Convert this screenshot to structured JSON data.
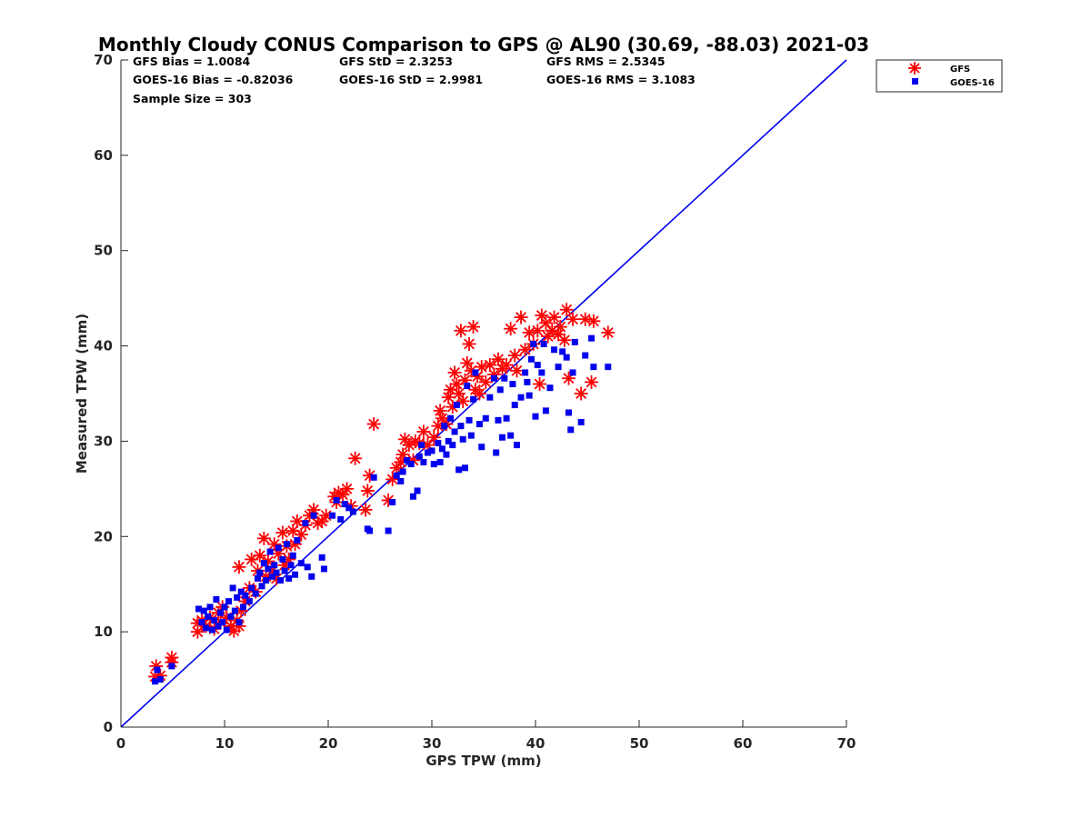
{
  "chart_data": {
    "type": "scatter",
    "title": "Monthly Cloudy CONUS Comparison to GPS @ AL90 (30.69, -88.03) 2021-03",
    "xlabel": "GPS TPW (mm)",
    "ylabel": "Measured TPW (mm)",
    "xlim": [
      0,
      70
    ],
    "ylim": [
      0,
      70
    ],
    "xticks": [
      "0",
      "10",
      "20",
      "30",
      "40",
      "50",
      "60",
      "70"
    ],
    "yticks": [
      "0",
      "10",
      "20",
      "30",
      "40",
      "50",
      "60",
      "70"
    ],
    "grid": false,
    "legend_position": "top-right outside",
    "stats": {
      "gfs_bias": "GFS Bias = 1.0084",
      "gfs_std": "GFS StD = 2.3253",
      "gfs_rms": "GFS RMS = 2.5345",
      "goes_bias": "GOES-16 Bias = -0.82036",
      "goes_std": "GOES-16 StD = 2.9981",
      "goes_rms": "GOES-16 RMS = 3.1083",
      "sample_size": "Sample Size = 303"
    },
    "reference_line": {
      "x": [
        0,
        70
      ],
      "y": [
        0,
        70
      ],
      "color": "#0000ee"
    },
    "series": [
      {
        "name": "GFS",
        "marker": "asterisk",
        "color": "#ff0000",
        "points": [
          [
            3.3,
            5.3
          ],
          [
            3.4,
            6.4
          ],
          [
            3.8,
            5.4
          ],
          [
            4.9,
            6.8
          ],
          [
            4.9,
            7.3
          ],
          [
            7.4,
            10.0
          ],
          [
            7.4,
            10.9
          ],
          [
            7.8,
            11.2
          ],
          [
            8.2,
            10.6
          ],
          [
            8.6,
            11.5
          ],
          [
            9.0,
            10.3
          ],
          [
            9.4,
            12.0
          ],
          [
            9.6,
            11.0
          ],
          [
            9.8,
            12.6
          ],
          [
            10.2,
            11.5
          ],
          [
            10.6,
            10.6
          ],
          [
            10.9,
            10.1
          ],
          [
            11.2,
            11.2
          ],
          [
            11.4,
            10.6
          ],
          [
            11.6,
            12.2
          ],
          [
            11.4,
            16.8
          ],
          [
            12.0,
            13.2
          ],
          [
            12.4,
            14.6
          ],
          [
            12.6,
            17.6
          ],
          [
            13.0,
            14.2
          ],
          [
            13.2,
            16.4
          ],
          [
            13.4,
            18.0
          ],
          [
            13.8,
            19.8
          ],
          [
            14.0,
            15.8
          ],
          [
            14.2,
            17.4
          ],
          [
            14.6,
            16.4
          ],
          [
            14.8,
            19.2
          ],
          [
            15.0,
            15.6
          ],
          [
            15.2,
            18.2
          ],
          [
            15.6,
            20.4
          ],
          [
            15.8,
            17.0
          ],
          [
            16.0,
            19.0
          ],
          [
            16.2,
            17.6
          ],
          [
            16.6,
            20.6
          ],
          [
            16.8,
            19.2
          ],
          [
            17.0,
            21.6
          ],
          [
            17.4,
            20.2
          ],
          [
            17.8,
            21.2
          ],
          [
            18.2,
            22.2
          ],
          [
            18.6,
            22.8
          ],
          [
            19.0,
            21.4
          ],
          [
            19.4,
            21.6
          ],
          [
            19.8,
            22.2
          ],
          [
            20.6,
            24.2
          ],
          [
            20.8,
            23.6
          ],
          [
            21.0,
            24.6
          ],
          [
            21.4,
            24.4
          ],
          [
            21.8,
            25.0
          ],
          [
            22.2,
            23.2
          ],
          [
            22.6,
            28.2
          ],
          [
            23.6,
            22.8
          ],
          [
            23.8,
            24.8
          ],
          [
            24.0,
            26.4
          ],
          [
            24.4,
            31.8
          ],
          [
            25.8,
            23.8
          ],
          [
            26.2,
            26.0
          ],
          [
            26.6,
            27.2
          ],
          [
            27.0,
            27.8
          ],
          [
            27.2,
            28.6
          ],
          [
            27.4,
            30.2
          ],
          [
            27.8,
            29.6
          ],
          [
            28.2,
            28.0
          ],
          [
            28.4,
            30.0
          ],
          [
            28.8,
            29.8
          ],
          [
            29.2,
            31.0
          ],
          [
            29.6,
            29.6
          ],
          [
            30.2,
            30.4
          ],
          [
            30.6,
            31.6
          ],
          [
            30.8,
            33.2
          ],
          [
            31.0,
            32.4
          ],
          [
            31.4,
            31.8
          ],
          [
            31.6,
            34.6
          ],
          [
            31.8,
            35.4
          ],
          [
            32.0,
            33.6
          ],
          [
            32.2,
            37.2
          ],
          [
            32.4,
            36.0
          ],
          [
            32.6,
            35.0
          ],
          [
            32.8,
            41.6
          ],
          [
            33.0,
            34.2
          ],
          [
            33.2,
            36.4
          ],
          [
            33.4,
            38.2
          ],
          [
            33.6,
            40.2
          ],
          [
            33.8,
            37.4
          ],
          [
            34.0,
            42.0
          ],
          [
            34.2,
            35.4
          ],
          [
            34.4,
            36.8
          ],
          [
            34.6,
            35.0
          ],
          [
            34.8,
            37.8
          ],
          [
            35.2,
            36.2
          ],
          [
            35.6,
            38.0
          ],
          [
            36.0,
            37.0
          ],
          [
            36.4,
            38.6
          ],
          [
            36.8,
            37.6
          ],
          [
            37.2,
            38.0
          ],
          [
            37.6,
            41.8
          ],
          [
            38.0,
            39.0
          ],
          [
            38.2,
            37.4
          ],
          [
            38.6,
            43.0
          ],
          [
            39.0,
            39.6
          ],
          [
            39.4,
            41.4
          ],
          [
            39.8,
            40.2
          ],
          [
            40.2,
            41.6
          ],
          [
            40.4,
            36.0
          ],
          [
            40.6,
            43.2
          ],
          [
            41.0,
            42.4
          ],
          [
            41.2,
            41.0
          ],
          [
            41.6,
            41.6
          ],
          [
            41.8,
            43.0
          ],
          [
            42.2,
            41.2
          ],
          [
            42.4,
            42.0
          ],
          [
            42.8,
            40.6
          ],
          [
            43.0,
            43.8
          ],
          [
            43.2,
            36.6
          ],
          [
            43.6,
            42.8
          ],
          [
            44.4,
            35.0
          ],
          [
            44.8,
            42.8
          ],
          [
            45.4,
            36.2
          ],
          [
            45.6,
            42.6
          ],
          [
            47.0,
            41.4
          ]
        ]
      },
      {
        "name": "GOES-16",
        "marker": "square",
        "color": "#0000ee",
        "points": [
          [
            3.3,
            4.8
          ],
          [
            3.5,
            6.0
          ],
          [
            3.8,
            5.0
          ],
          [
            4.9,
            6.4
          ],
          [
            7.5,
            12.4
          ],
          [
            7.8,
            11.0
          ],
          [
            8.0,
            12.2
          ],
          [
            8.2,
            10.4
          ],
          [
            8.4,
            11.6
          ],
          [
            8.6,
            12.6
          ],
          [
            8.8,
            10.2
          ],
          [
            9.0,
            11.2
          ],
          [
            9.2,
            13.4
          ],
          [
            9.4,
            10.6
          ],
          [
            9.6,
            12.0
          ],
          [
            9.8,
            11.0
          ],
          [
            10.0,
            12.6
          ],
          [
            10.2,
            10.2
          ],
          [
            10.4,
            13.2
          ],
          [
            10.6,
            11.6
          ],
          [
            10.8,
            14.6
          ],
          [
            11.0,
            12.2
          ],
          [
            11.2,
            13.6
          ],
          [
            11.4,
            11.0
          ],
          [
            11.6,
            14.2
          ],
          [
            11.8,
            12.6
          ],
          [
            12.0,
            13.8
          ],
          [
            12.4,
            13.2
          ],
          [
            12.6,
            14.6
          ],
          [
            13.0,
            14.0
          ],
          [
            13.2,
            15.6
          ],
          [
            13.4,
            16.2
          ],
          [
            13.6,
            14.8
          ],
          [
            13.8,
            17.2
          ],
          [
            14.0,
            15.4
          ],
          [
            14.2,
            16.6
          ],
          [
            14.4,
            18.4
          ],
          [
            14.6,
            15.8
          ],
          [
            14.8,
            17.0
          ],
          [
            15.0,
            16.2
          ],
          [
            15.2,
            18.8
          ],
          [
            15.4,
            15.4
          ],
          [
            15.6,
            17.6
          ],
          [
            15.8,
            16.4
          ],
          [
            16.0,
            19.2
          ],
          [
            16.2,
            15.6
          ],
          [
            16.4,
            17.0
          ],
          [
            16.6,
            18.0
          ],
          [
            16.8,
            16.0
          ],
          [
            17.0,
            19.6
          ],
          [
            17.4,
            17.2
          ],
          [
            17.8,
            21.4
          ],
          [
            18.0,
            16.8
          ],
          [
            18.4,
            15.8
          ],
          [
            18.6,
            22.2
          ],
          [
            19.4,
            17.8
          ],
          [
            19.6,
            16.6
          ],
          [
            20.4,
            22.2
          ],
          [
            20.8,
            23.8
          ],
          [
            21.2,
            21.8
          ],
          [
            21.6,
            23.4
          ],
          [
            22.0,
            23.0
          ],
          [
            22.4,
            22.6
          ],
          [
            23.8,
            20.8
          ],
          [
            24.0,
            20.6
          ],
          [
            24.4,
            26.2
          ],
          [
            25.8,
            20.6
          ],
          [
            26.2,
            23.6
          ],
          [
            26.6,
            26.4
          ],
          [
            27.0,
            25.8
          ],
          [
            27.2,
            26.8
          ],
          [
            27.6,
            28.0
          ],
          [
            28.0,
            27.6
          ],
          [
            28.2,
            24.2
          ],
          [
            28.6,
            24.8
          ],
          [
            28.8,
            28.4
          ],
          [
            29.0,
            29.6
          ],
          [
            29.2,
            27.8
          ],
          [
            29.6,
            28.8
          ],
          [
            30.0,
            29.0
          ],
          [
            30.2,
            27.6
          ],
          [
            30.6,
            29.8
          ],
          [
            30.8,
            27.8
          ],
          [
            31.0,
            29.2
          ],
          [
            31.2,
            31.6
          ],
          [
            31.4,
            28.6
          ],
          [
            31.6,
            30.0
          ],
          [
            31.8,
            32.4
          ],
          [
            32.0,
            29.6
          ],
          [
            32.2,
            31.0
          ],
          [
            32.4,
            33.8
          ],
          [
            32.6,
            27.0
          ],
          [
            32.8,
            31.6
          ],
          [
            33.0,
            30.2
          ],
          [
            33.2,
            27.2
          ],
          [
            33.4,
            35.8
          ],
          [
            33.6,
            32.2
          ],
          [
            33.8,
            30.6
          ],
          [
            34.0,
            34.4
          ],
          [
            34.2,
            37.2
          ],
          [
            34.6,
            31.8
          ],
          [
            34.8,
            29.4
          ],
          [
            35.2,
            32.4
          ],
          [
            35.6,
            34.6
          ],
          [
            36.0,
            36.6
          ],
          [
            36.2,
            28.8
          ],
          [
            36.4,
            32.2
          ],
          [
            36.6,
            35.4
          ],
          [
            36.8,
            30.4
          ],
          [
            37.0,
            36.6
          ],
          [
            37.2,
            32.4
          ],
          [
            37.6,
            30.6
          ],
          [
            37.8,
            36.0
          ],
          [
            38.0,
            33.8
          ],
          [
            38.2,
            29.6
          ],
          [
            38.6,
            34.6
          ],
          [
            39.0,
            37.2
          ],
          [
            39.2,
            36.2
          ],
          [
            39.4,
            34.8
          ],
          [
            39.6,
            38.6
          ],
          [
            39.8,
            40.2
          ],
          [
            40.0,
            32.6
          ],
          [
            40.2,
            38.0
          ],
          [
            40.6,
            37.2
          ],
          [
            40.8,
            40.2
          ],
          [
            41.0,
            33.2
          ],
          [
            41.4,
            35.6
          ],
          [
            41.8,
            39.6
          ],
          [
            42.2,
            37.8
          ],
          [
            42.6,
            39.4
          ],
          [
            43.0,
            38.8
          ],
          [
            43.2,
            33.0
          ],
          [
            43.4,
            31.2
          ],
          [
            43.6,
            37.2
          ],
          [
            43.8,
            40.4
          ],
          [
            44.4,
            32.0
          ],
          [
            44.8,
            39.0
          ],
          [
            45.4,
            40.8
          ],
          [
            45.6,
            37.8
          ],
          [
            47.0,
            37.8
          ]
        ]
      }
    ]
  }
}
